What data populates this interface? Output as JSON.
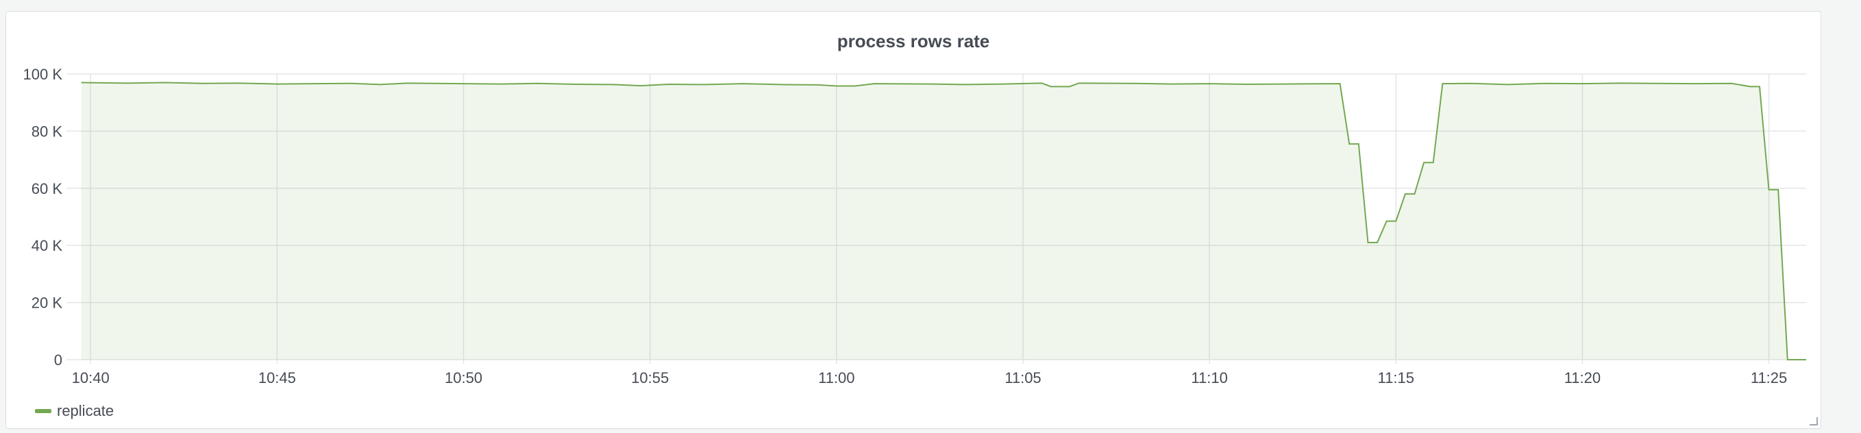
{
  "panel": {
    "title": "process rows rate"
  },
  "legend": {
    "items": [
      {
        "label": "replicate",
        "color": "#73a852"
      }
    ]
  },
  "chart_data": {
    "type": "line",
    "title": "process rows rate",
    "x_unit": "time",
    "x_range": [
      "10:39:30",
      "11:26:00"
    ],
    "ylim": [
      0,
      100000
    ],
    "x_ticks": [
      "10:40",
      "10:45",
      "10:50",
      "10:55",
      "11:00",
      "11:05",
      "11:10",
      "11:15",
      "11:20",
      "11:25"
    ],
    "y_ticks": [
      {
        "value": 0,
        "label": "0"
      },
      {
        "value": 20000,
        "label": "20 K"
      },
      {
        "value": 40000,
        "label": "40 K"
      },
      {
        "value": 60000,
        "label": "60 K"
      },
      {
        "value": 80000,
        "label": "80 K"
      },
      {
        "value": 100000,
        "label": "100 K"
      }
    ],
    "grid": true,
    "legend_position": "bottom-left",
    "series": [
      {
        "name": "replicate",
        "color": "#73a852",
        "fill": true,
        "points": [
          [
            "10:39:45",
            97000
          ],
          [
            "10:41:00",
            96800
          ],
          [
            "10:42:00",
            97000
          ],
          [
            "10:43:00",
            96700
          ],
          [
            "10:44:00",
            96800
          ],
          [
            "10:45:00",
            96500
          ],
          [
            "10:46:00",
            96600
          ],
          [
            "10:47:00",
            96700
          ],
          [
            "10:47:45",
            96300
          ],
          [
            "10:48:30",
            96800
          ],
          [
            "10:50:00",
            96600
          ],
          [
            "10:51:00",
            96500
          ],
          [
            "10:52:00",
            96700
          ],
          [
            "10:53:00",
            96400
          ],
          [
            "10:54:00",
            96300
          ],
          [
            "10:54:45",
            95900
          ],
          [
            "10:55:30",
            96400
          ],
          [
            "10:56:30",
            96300
          ],
          [
            "10:57:30",
            96600
          ],
          [
            "10:58:30",
            96300
          ],
          [
            "10:59:30",
            96200
          ],
          [
            "11:00:00",
            95800
          ],
          [
            "11:00:30",
            95800
          ],
          [
            "11:01:00",
            96600
          ],
          [
            "11:02:30",
            96500
          ],
          [
            "11:03:30",
            96300
          ],
          [
            "11:04:30",
            96500
          ],
          [
            "11:05:30",
            96800
          ],
          [
            "11:05:45",
            95600
          ],
          [
            "11:06:15",
            95600
          ],
          [
            "11:06:30",
            96800
          ],
          [
            "11:08:00",
            96700
          ],
          [
            "11:09:00",
            96500
          ],
          [
            "11:10:00",
            96600
          ],
          [
            "11:11:00",
            96400
          ],
          [
            "11:12:00",
            96500
          ],
          [
            "11:13:30",
            96600
          ],
          [
            "11:13:45",
            75500
          ],
          [
            "11:14:00",
            75500
          ],
          [
            "11:14:15",
            41000
          ],
          [
            "11:14:30",
            41000
          ],
          [
            "11:14:45",
            48500
          ],
          [
            "11:15:00",
            48500
          ],
          [
            "11:15:15",
            58000
          ],
          [
            "11:15:30",
            58000
          ],
          [
            "11:15:45",
            69000
          ],
          [
            "11:16:00",
            69000
          ],
          [
            "11:16:15",
            96600
          ],
          [
            "11:17:00",
            96700
          ],
          [
            "11:18:00",
            96300
          ],
          [
            "11:19:00",
            96700
          ],
          [
            "11:20:00",
            96600
          ],
          [
            "11:21:00",
            96800
          ],
          [
            "11:22:00",
            96700
          ],
          [
            "11:23:00",
            96600
          ],
          [
            "11:24:00",
            96700
          ],
          [
            "11:24:30",
            95600
          ],
          [
            "11:24:45",
            95600
          ],
          [
            "11:25:00",
            59500
          ],
          [
            "11:25:15",
            59500
          ],
          [
            "11:25:30",
            0
          ],
          [
            "11:26:00",
            0
          ]
        ]
      }
    ]
  }
}
